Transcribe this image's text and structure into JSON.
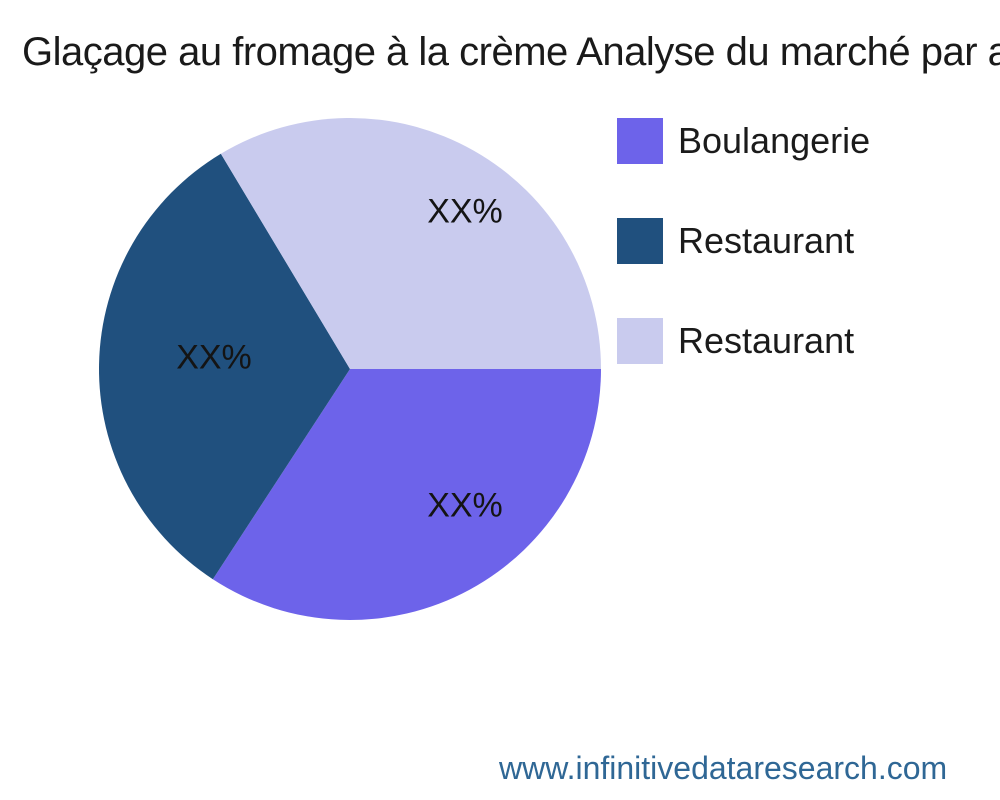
{
  "title": {
    "text": "Glaçage au fromage à la crème Analyse du marché par a"
  },
  "footer": {
    "url": "www.infinitivedataresearch.com",
    "color": "#2f6795"
  },
  "chart_data": {
    "type": "pie",
    "title": "Glaçage au fromage à la crème Analyse du marché par a",
    "legend_position": "right",
    "start_angle_deg": 0,
    "direction": "clockwise",
    "background": "#ffffff",
    "slices": [
      {
        "label": "Boulangerie",
        "display_label": "XX%",
        "value_pct": 34.2,
        "color": "#6d63ea"
      },
      {
        "label": "Restaurant",
        "display_label": "XX%",
        "value_pct": 32.2,
        "color": "#20507e"
      },
      {
        "label": "Restaurant",
        "display_label": "XX%",
        "value_pct": 33.6,
        "color": "#c9cbee"
      }
    ]
  }
}
